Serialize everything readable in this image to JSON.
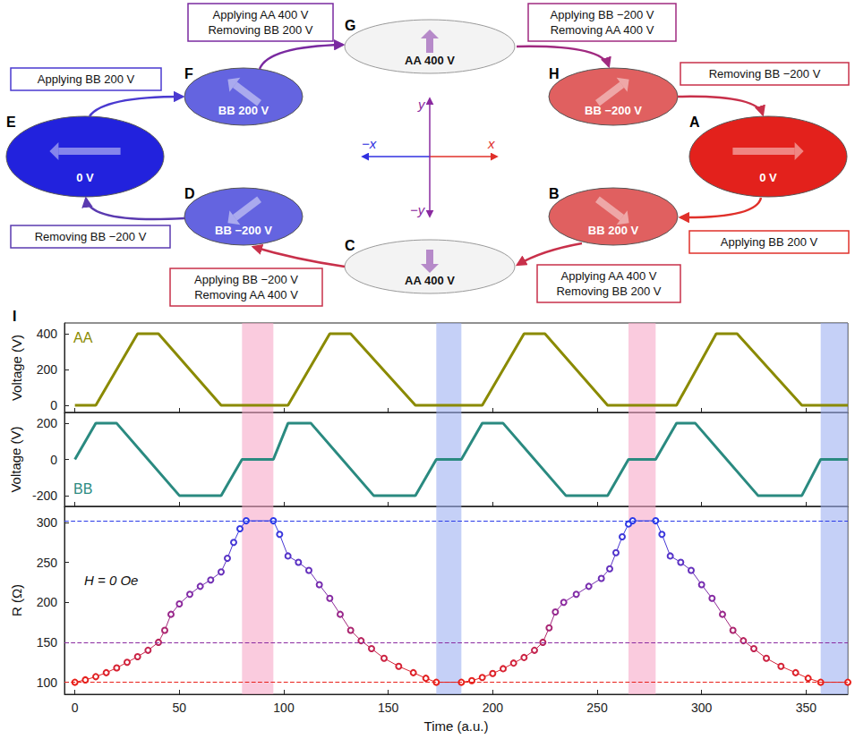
{
  "diagram": {
    "states": [
      {
        "letter": "A",
        "label": "0 V",
        "color": "#e3211c",
        "arrow": "right"
      },
      {
        "letter": "B",
        "label": "BB 200 V",
        "color": "#e06060",
        "arrow": "down-right"
      },
      {
        "letter": "C",
        "label": "AA 400 V",
        "color": "#f3f3f3",
        "arrow": "down"
      },
      {
        "letter": "D",
        "label": "BB −200 V",
        "color": "#6464e0",
        "arrow": "down-left"
      },
      {
        "letter": "E",
        "label": "0 V",
        "color": "#2222dd",
        "arrow": "left"
      },
      {
        "letter": "F",
        "label": "BB 200 V",
        "color": "#6464e0",
        "arrow": "up-left"
      },
      {
        "letter": "G",
        "label": "AA 400 V",
        "color": "#f3f3f3",
        "arrow": "up"
      },
      {
        "letter": "H",
        "label": "BB −200 V",
        "color": "#e06060",
        "arrow": "up-right"
      }
    ],
    "transitions": [
      {
        "from": "A",
        "to": "B",
        "lines": [
          "Applying BB 200 V"
        ],
        "color": "#e0302a"
      },
      {
        "from": "B",
        "to": "C",
        "lines": [
          "Applying AA 400 V",
          "Removing BB 200 V"
        ],
        "color": "#c8304a"
      },
      {
        "from": "C",
        "to": "D",
        "lines": [
          "Applying BB −200 V",
          "Removing AA 400 V"
        ],
        "color": "#c8304a"
      },
      {
        "from": "D",
        "to": "E",
        "lines": [
          "Removing BB −200 V"
        ],
        "color": "#5a3ab0"
      },
      {
        "from": "E",
        "to": "F",
        "lines": [
          "Applying BB 200 V"
        ],
        "color": "#4a3ad0"
      },
      {
        "from": "F",
        "to": "G",
        "lines": [
          "Applying AA 400 V",
          "Removing BB 200 V"
        ],
        "color": "#7a2aa0"
      },
      {
        "from": "G",
        "to": "H",
        "lines": [
          "Applying BB −200 V",
          "Removing AA 400 V"
        ],
        "color": "#a02a80"
      },
      {
        "from": "H",
        "to": "A",
        "lines": [
          "Removing BB −200 V"
        ],
        "color": "#c8304a"
      }
    ],
    "axes": {
      "x": "x",
      "minus_x": "−x",
      "y": "y",
      "minus_y": "−y"
    }
  },
  "chart_data": [
    {
      "type": "line",
      "panel": "I",
      "ylabel": "Voltage (V)",
      "xlim": [
        -5,
        370
      ],
      "xticks": [
        0,
        50,
        100,
        150,
        200,
        250,
        300,
        350
      ],
      "ylim": [
        -40,
        460
      ],
      "yticks": [
        0,
        200,
        400
      ],
      "tick_labels": "y",
      "bands": [
        {
          "x": [
            80,
            95
          ],
          "color": "#f7a8c8"
        },
        {
          "x": [
            173,
            185
          ],
          "color": "#9fb0f2"
        },
        {
          "x": [
            265,
            278
          ],
          "color": "#f7a8c8"
        },
        {
          "x": [
            357,
            370
          ],
          "color": "#9fb0f2"
        }
      ],
      "series": [
        {
          "name": "AA",
          "color": "#8a8a00",
          "marker": "none",
          "line_style": "solid",
          "x": [
            0,
            10,
            30,
            40,
            70,
            102,
            122,
            132,
            163,
            195,
            215,
            225,
            255,
            288,
            307,
            317,
            348,
            370
          ],
          "values": [
            0,
            0,
            400,
            400,
            0,
            0,
            400,
            400,
            0,
            0,
            400,
            400,
            0,
            0,
            400,
            400,
            0,
            0
          ]
        }
      ]
    },
    {
      "type": "line",
      "ylabel": "Voltage (V)",
      "xlim": [
        -5,
        370
      ],
      "xticks": [
        0,
        50,
        100,
        150,
        200,
        250,
        300,
        350
      ],
      "ylim": [
        -260,
        260
      ],
      "yticks": [
        -200,
        0,
        200
      ],
      "tick_labels": "y",
      "bands": [
        {
          "x": [
            80,
            95
          ],
          "color": "#f7a8c8"
        },
        {
          "x": [
            173,
            185
          ],
          "color": "#9fb0f2"
        },
        {
          "x": [
            265,
            278
          ],
          "color": "#f7a8c8"
        },
        {
          "x": [
            357,
            370
          ],
          "color": "#9fb0f2"
        }
      ],
      "series": [
        {
          "name": "BB",
          "color": "#2a8a80",
          "marker": "none",
          "line_style": "solid",
          "x": [
            0,
            10,
            20,
            50,
            70,
            80,
            95,
            102,
            113,
            143,
            163,
            173,
            185,
            195,
            205,
            235,
            255,
            265,
            278,
            288,
            297,
            327,
            348,
            357,
            370
          ],
          "values": [
            0,
            200,
            200,
            -200,
            -200,
            0,
            0,
            200,
            200,
            -200,
            -200,
            0,
            0,
            200,
            200,
            -200,
            -200,
            0,
            0,
            200,
            200,
            -200,
            -200,
            0,
            0
          ]
        }
      ]
    },
    {
      "type": "line",
      "xlabel": "Time (a.u.)",
      "ylabel": "R (Ω)",
      "xlim": [
        -5,
        370
      ],
      "xticks": [
        0,
        50,
        100,
        150,
        200,
        250,
        300,
        350
      ],
      "ylim": [
        85,
        320
      ],
      "yticks": [
        100,
        150,
        200,
        250,
        300
      ],
      "annotations": [
        "H = 0 Oe"
      ],
      "bands": [
        {
          "x": [
            80,
            95
          ],
          "color": "#f7a8c8"
        },
        {
          "x": [
            173,
            185
          ],
          "color": "#9fb0f2"
        },
        {
          "x": [
            265,
            278
          ],
          "color": "#f7a8c8"
        },
        {
          "x": [
            357,
            370
          ],
          "color": "#9fb0f2"
        }
      ],
      "hlines": [
        {
          "y": 100,
          "color": "#e8201a"
        },
        {
          "y": 150,
          "color": "#8a2aa0"
        },
        {
          "y": 302,
          "color": "#2a3ae8"
        }
      ],
      "series": [
        {
          "name": "R",
          "marker": "open_circle",
          "line_style": "solid",
          "x": [
            0,
            5,
            10,
            15,
            20,
            25,
            30,
            35,
            40,
            43,
            46,
            50,
            55,
            60,
            65,
            70,
            73,
            76,
            79,
            82,
            95,
            98,
            102,
            107,
            112,
            117,
            122,
            127,
            132,
            137,
            142,
            148,
            155,
            162,
            168,
            173,
            185,
            190,
            195,
            200,
            205,
            210,
            215,
            220,
            224,
            227,
            230,
            234,
            240,
            246,
            252,
            256,
            259,
            262,
            265,
            267,
            278,
            281,
            285,
            290,
            295,
            300,
            305,
            310,
            315,
            320,
            325,
            331,
            338,
            345,
            351,
            357,
            370
          ],
          "values": [
            100,
            103,
            107,
            112,
            118,
            125,
            132,
            140,
            150,
            165,
            185,
            198,
            210,
            220,
            228,
            238,
            255,
            275,
            292,
            302,
            302,
            285,
            258,
            250,
            240,
            222,
            205,
            185,
            165,
            152,
            142,
            130,
            120,
            112,
            105,
            100,
            100,
            102,
            106,
            111,
            117,
            124,
            131,
            140,
            150,
            168,
            188,
            200,
            210,
            220,
            230,
            242,
            262,
            282,
            298,
            302,
            302,
            285,
            258,
            250,
            240,
            222,
            205,
            185,
            165,
            152,
            142,
            130,
            120,
            112,
            105,
            100,
            100
          ]
        }
      ]
    }
  ]
}
